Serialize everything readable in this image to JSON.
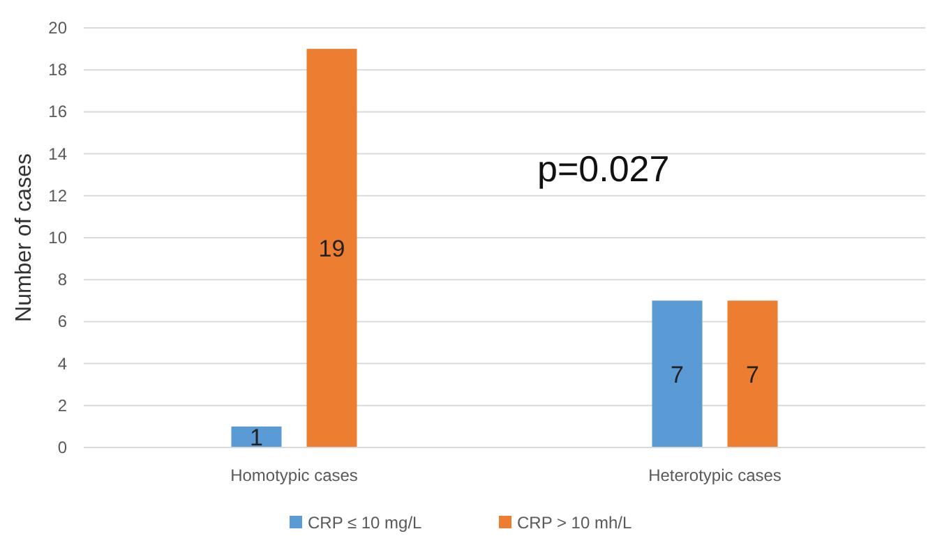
{
  "chart_data": {
    "type": "bar",
    "ylabel": "Number of cases",
    "categories": [
      "Homotypic cases",
      "Heterotypic cases"
    ],
    "series": [
      {
        "name": "CRP ≤ 10 mg/L",
        "color": "#5b9bd5",
        "values": [
          1,
          7
        ]
      },
      {
        "name": "CRP > 10 mh/L",
        "color": "#ed7d31",
        "values": [
          19,
          7
        ]
      }
    ],
    "ylim": [
      0,
      20
    ],
    "yticks": [
      0,
      2,
      4,
      6,
      8,
      10,
      12,
      14,
      16,
      18,
      20
    ],
    "grid": "y",
    "legend": "bottom",
    "data_labels": true,
    "annotations": [
      "p=0.027"
    ]
  }
}
